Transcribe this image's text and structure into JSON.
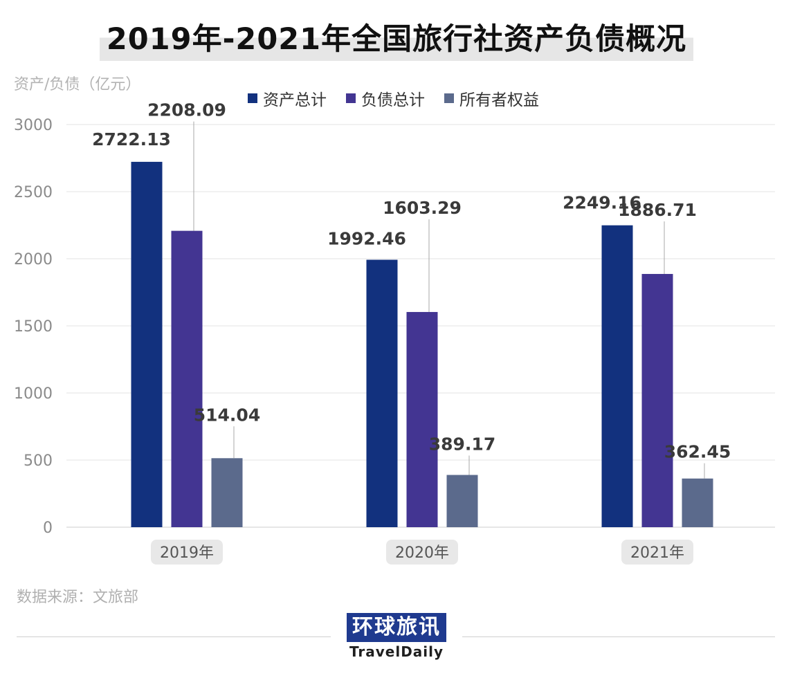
{
  "title": "2019年-2021年全国旅行社资产负债概况",
  "source": "数据来源：文旅部",
  "logo": {
    "cn": "环球旅讯",
    "en": "TravelDaily"
  },
  "chart_data": {
    "type": "bar",
    "title": "2019年-2021年全国旅行社资产负债概况",
    "ylabel": "资产/负债（亿元）",
    "xlabel": "",
    "categories": [
      "2019年",
      "2020年",
      "2021年"
    ],
    "ylim": [
      0,
      3000
    ],
    "yticks": [
      0,
      500,
      1000,
      1500,
      2000,
      2500,
      3000
    ],
    "grid": true,
    "legend_position": "top",
    "series": [
      {
        "name": "资产总计",
        "values": [
          2722.13,
          1992.46,
          2249.16
        ],
        "color": "#12317e"
      },
      {
        "name": "负债总计",
        "values": [
          2208.09,
          1603.29,
          1886.71
        ],
        "color": "#433592"
      },
      {
        "name": "所有者权益",
        "values": [
          514.04,
          389.17,
          362.45
        ],
        "color": "#5b6a8c"
      }
    ],
    "data_labels": [
      [
        "2722.13",
        "2208.09",
        "514.04"
      ],
      [
        "1992.46",
        "1603.29",
        "389.17"
      ],
      [
        "2249.16",
        "1886.71",
        "362.45"
      ]
    ]
  }
}
